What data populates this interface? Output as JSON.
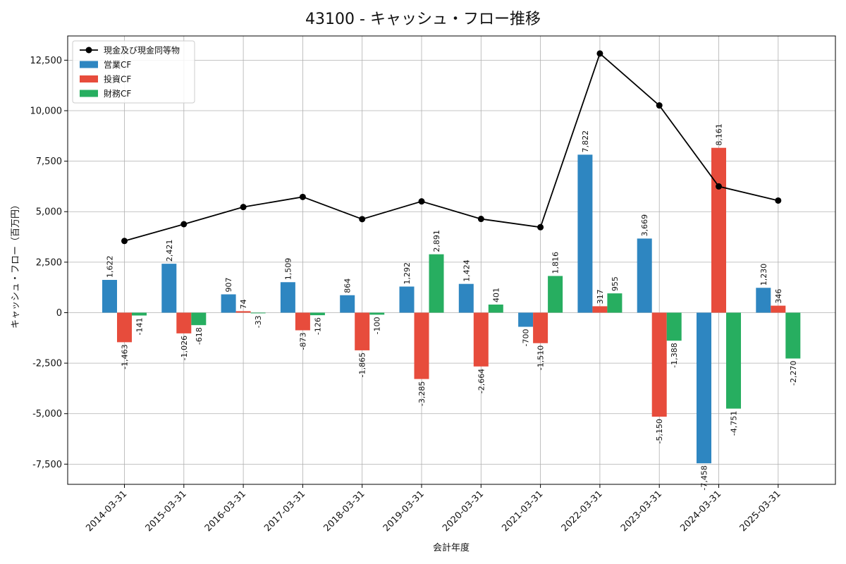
{
  "chart_data": {
    "type": "bar",
    "title": "43100 - キャッシュ・フロー推移",
    "xlabel": "会計年度",
    "ylabel": "キャッシュ・フロー（百万円）",
    "categories": [
      "2014-03-31",
      "2015-03-31",
      "2016-03-31",
      "2017-03-31",
      "2018-03-31",
      "2019-03-31",
      "2020-03-31",
      "2021-03-31",
      "2022-03-31",
      "2023-03-31",
      "2024-03-31",
      "2025-03-31"
    ],
    "ylim": [
      -8500,
      13700
    ],
    "yticks": [
      -7500,
      -5000,
      -2500,
      0,
      2500,
      5000,
      7500,
      10000,
      12500
    ],
    "ytick_labels": [
      "-7,500",
      "-5,000",
      "-2,500",
      "0",
      "2,500",
      "5,000",
      "7,500",
      "10,000",
      "12,500"
    ],
    "grid": true,
    "legend_position": "top-left",
    "series": [
      {
        "name": "営業CF",
        "kind": "bar",
        "color": "#2e86c1",
        "values": [
          1622,
          2421,
          907,
          1509,
          864,
          1292,
          1424,
          -700,
          7822,
          3669,
          -7458,
          1230
        ],
        "labels": [
          "1,622",
          "2,421",
          "907",
          "1,509",
          "864",
          "1,292",
          "1,424",
          "-700",
          "7,822",
          "3,669",
          "-7,458",
          "1,230"
        ]
      },
      {
        "name": "投資CF",
        "kind": "bar",
        "color": "#e74c3c",
        "values": [
          -1463,
          -1026,
          74,
          -873,
          -1865,
          -3285,
          -2664,
          -1510,
          317,
          -5150,
          8161,
          346
        ],
        "labels": [
          "-1,463",
          "-1,026",
          "74",
          "-873",
          "-1,865",
          "-3,285",
          "-2,664",
          "-1,510",
          "317",
          "-5,150",
          "8,161",
          "346"
        ]
      },
      {
        "name": "財務CF",
        "kind": "bar",
        "color": "#27ae60",
        "values": [
          -141,
          -618,
          -33,
          -126,
          -100,
          2891,
          401,
          1816,
          955,
          -1388,
          -4751,
          -2270
        ],
        "labels": [
          "-141",
          "-618",
          "-33",
          "-126",
          "-100",
          "2,891",
          "401",
          "1,816",
          "955",
          "-1,388",
          "-4,751",
          "-2,270"
        ]
      },
      {
        "name": "現金及び現金同等物",
        "kind": "line",
        "color": "#000000",
        "values": [
          3550,
          4380,
          5230,
          5730,
          4630,
          5510,
          4640,
          4230,
          12830,
          10260,
          6250,
          5550
        ]
      }
    ]
  }
}
